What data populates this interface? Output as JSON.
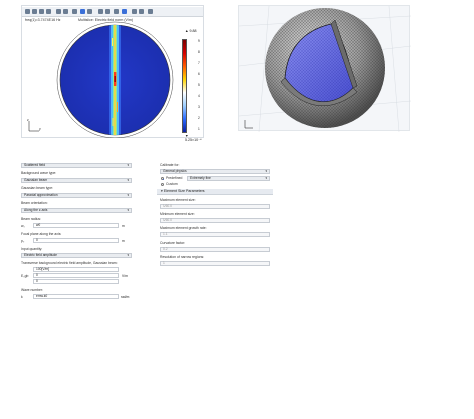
{
  "plot": {
    "title": "freq(1)=3.7474E16 Hz",
    "subtitle": "Multislice: Electric field norm (V/m)",
    "colorbar_max": "▲ 9.88",
    "colorbar_min": "▼ 5.25×10⁻⁴",
    "ticks": [
      "9",
      "8",
      "7",
      "6",
      "5",
      "4",
      "3",
      "2",
      "1"
    ],
    "axis_labels": [
      "x",
      "y",
      "z"
    ]
  },
  "left_settings": {
    "field_type": "Scattered field",
    "background_wave_type_label": "Background wave type:",
    "background_wave_type": "Gaussian beam",
    "gaussian_beam_type_label": "Gaussian beam type:",
    "gaussian_beam_type": "Paraxial approximation",
    "beam_orientation_label": "Beam orientation:",
    "beam_orientation": "Along the z-axis",
    "beam_radius_label": "Beam radius:",
    "beam_radius_symbol": "w₀",
    "beam_radius_value": "w0",
    "beam_radius_unit": "m",
    "focal_plane_label": "Focal plane along the axis:",
    "focal_plane_symbol": "p₀",
    "focal_plane_value": "0",
    "focal_plane_unit": "m",
    "input_quantity_label": "Input quantity:",
    "input_quantity": "Electric field amplitude",
    "amplitude_label": "Transverse background electric field amplitude, Gaussian beam:",
    "amplitude_symbol": "E₀gb",
    "amplitude_values": [
      "100[V/m]",
      "0",
      "0"
    ],
    "amplitude_unit": "V/m",
    "wave_number_label": "Wave number:",
    "wave_number_symbol": "k",
    "wave_number_value": "emw.k0",
    "wave_number_unit": "rad/m"
  },
  "right_settings": {
    "calibrate_for_label": "Calibrate for:",
    "calibrate_for": "General physics",
    "predefined_label": "Predefined",
    "predefined_value": "Extremely fine",
    "custom_label": "Custom",
    "section_title": "Element Size Parameters",
    "max_size_label": "Maximum element size:",
    "max_size_value": "λ/60.0",
    "min_size_label": "Minimum element size:",
    "min_size_value": "λ/60.0",
    "growth_label": "Maximum element growth rate:",
    "growth_value": "1.1",
    "curvature_label": "Curvature factor:",
    "curvature_value": "0.2",
    "narrow_label": "Resolution of narrow regions:",
    "narrow_value": "1"
  }
}
